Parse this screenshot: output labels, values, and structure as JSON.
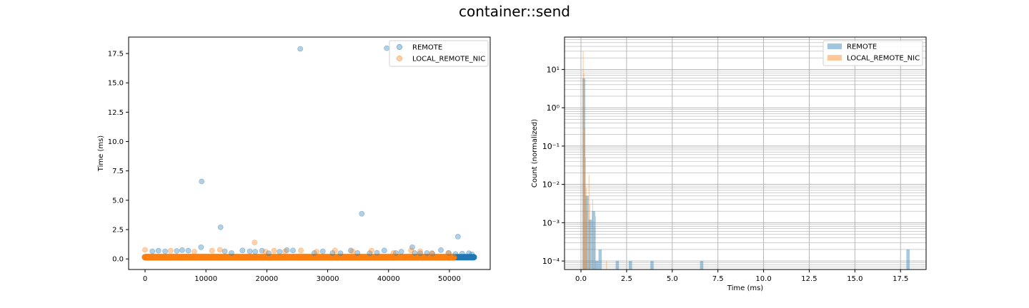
{
  "figure": {
    "title": "container::send"
  },
  "colors": {
    "remote": "#1f77b4",
    "local": "#ff7f0e"
  },
  "chart_data": [
    {
      "type": "scatter",
      "title": "",
      "xlabel": "",
      "ylabel": "Time (ms)",
      "xlim": [
        -2700,
        56700
      ],
      "ylim": [
        -0.9,
        18.9
      ],
      "xticks": [
        0,
        10000,
        20000,
        30000,
        40000,
        50000
      ],
      "xtick_labels": [
        "0",
        "10000",
        "20000",
        "30000",
        "40000",
        "50000"
      ],
      "yticks": [
        0,
        2.5,
        5,
        7.5,
        10,
        12.5,
        15,
        17.5
      ],
      "ytick_labels": [
        "0.0",
        "2.5",
        "5.0",
        "7.5",
        "10.0",
        "12.5",
        "15.0",
        "17.5"
      ],
      "grid": false,
      "legend": {
        "position": "top-right",
        "entries": [
          "REMOTE",
          "LOCAL_REMOTE_NIC"
        ]
      },
      "series": [
        {
          "name": "REMOTE",
          "color": "#1f77b4",
          "baseline": {
            "x_range": [
              0,
              54000
            ],
            "y": 0.15
          },
          "x": [
            9300,
            12400,
            9200,
            25500,
            39700,
            35600,
            51400,
            43900,
            18100,
            33800,
            1200,
            2200,
            3300,
            5200,
            6100,
            7100,
            13100,
            14200,
            16000,
            17200,
            19200,
            20300,
            22100,
            23300,
            24300,
            27800,
            29200,
            30800,
            32100,
            34900,
            36900,
            38100,
            39300,
            41200,
            42100,
            44300,
            45200,
            46300,
            47200,
            48600,
            49900,
            51000,
            52100,
            53200,
            53700
          ],
          "y": [
            6.6,
            2.7,
            1.0,
            17.9,
            17.95,
            3.85,
            1.9,
            1.0,
            0.62,
            0.72,
            0.65,
            0.7,
            0.65,
            0.68,
            0.75,
            0.7,
            0.65,
            0.5,
            0.72,
            0.65,
            0.7,
            0.48,
            0.62,
            0.75,
            0.72,
            0.5,
            0.65,
            0.5,
            0.48,
            0.5,
            0.48,
            0.52,
            0.72,
            0.5,
            0.62,
            0.5,
            0.48,
            0.5,
            0.45,
            0.75,
            0.5,
            0.42,
            0.45,
            0.48,
            0.4
          ]
        },
        {
          "name": "LOCAL_REMOTE_NIC",
          "color": "#ff7f0e",
          "baseline": {
            "x_range": [
              0,
              50700
            ],
            "y": 0.15
          },
          "x": [
            0,
            4200,
            8100,
            11000,
            12300,
            18000,
            19800,
            21200,
            23000,
            25600,
            28200,
            31200,
            34100,
            37200,
            40800,
            43700,
            45200,
            47100,
            49800
          ],
          "y": [
            0.78,
            0.7,
            0.62,
            0.7,
            0.78,
            1.4,
            0.62,
            0.7,
            0.65,
            0.72,
            0.62,
            0.72,
            0.65,
            0.7,
            0.5,
            0.72,
            0.65,
            0.5,
            0.5
          ]
        }
      ]
    },
    {
      "type": "bar",
      "title": "",
      "xlabel": "Time (ms)",
      "ylabel": "Count (normalized)",
      "yscale": "log",
      "xlim": [
        -0.9,
        18.9
      ],
      "ylim": [
        6e-05,
        70
      ],
      "xticks": [
        0,
        2.5,
        5,
        7.5,
        10,
        12.5,
        15,
        17.5
      ],
      "xtick_labels": [
        "0.0",
        "2.5",
        "5.0",
        "7.5",
        "10.0",
        "12.5",
        "15.0",
        "17.5"
      ],
      "yticks": [
        0.0001,
        0.001,
        0.01,
        0.1,
        1,
        10
      ],
      "ytick_labels": [
        "10⁻⁴",
        "10⁻³",
        "10⁻²",
        "10⁻¹",
        "10⁰",
        "10¹"
      ],
      "grid": true,
      "legend": {
        "position": "top-right",
        "entries": [
          "REMOTE",
          "LOCAL_REMOTE_NIC"
        ]
      },
      "series": [
        {
          "name": "REMOTE",
          "color": "#1f77b4",
          "bins": [
            [
              0.08,
              0.24,
              5.8
            ],
            [
              0.24,
              0.42,
              0.005
            ],
            [
              0.42,
              0.6,
              0.0012
            ],
            [
              0.6,
              0.78,
              0.002
            ],
            [
              0.78,
              0.96,
              0.0001
            ],
            [
              0.96,
              1.14,
              0.0002
            ],
            [
              1.9,
              2.08,
              0.0001
            ],
            [
              2.62,
              2.8,
              0.0001
            ],
            [
              3.8,
              3.98,
              0.0001
            ],
            [
              6.52,
              6.7,
              0.0001
            ],
            [
              17.82,
              18.0,
              0.0002
            ]
          ]
        },
        {
          "name": "LOCAL_REMOTE_NIC",
          "color": "#ff7f0e",
          "bins": [
            [
              0.1,
              0.14,
              30
            ],
            [
              0.14,
              0.18,
              8
            ],
            [
              0.18,
              0.22,
              0.3
            ],
            [
              0.22,
              0.26,
              0.05
            ],
            [
              0.26,
              0.3,
              0.008
            ],
            [
              0.3,
              0.34,
              0.002
            ],
            [
              0.42,
              0.46,
              0.018
            ],
            [
              0.46,
              0.5,
              0.003
            ],
            [
              0.62,
              0.66,
              0.004
            ],
            [
              0.7,
              0.74,
              0.0008
            ],
            [
              0.78,
              0.82,
              0.0015
            ],
            [
              1.38,
              1.42,
              0.0001
            ]
          ]
        }
      ]
    }
  ]
}
